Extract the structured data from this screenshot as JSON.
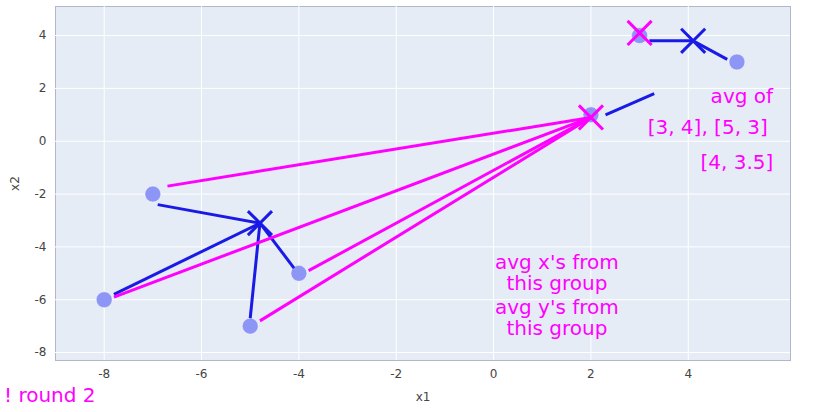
{
  "chart_data": {
    "type": "scatter",
    "x_label": "x1",
    "y_label": "x2",
    "x": [
      -7,
      -8,
      -5,
      -4,
      2,
      3,
      5
    ],
    "y": [
      -2,
      -6,
      -7,
      -5,
      1,
      4,
      3
    ],
    "color": "#8e96f5",
    "xlim": [
      -9,
      6.1
    ],
    "ylim": [
      -8.3,
      5.1
    ],
    "xticks": [
      -8,
      -6,
      -4,
      -2,
      0,
      2,
      4
    ],
    "yticks": [
      -8,
      -6,
      -4,
      -2,
      0,
      2,
      4
    ],
    "grid": true,
    "annotations": {
      "centroids": [
        {
          "x": -4.8,
          "y": -3.1,
          "color": "#1a1ae6"
        },
        {
          "x": 2,
          "y": 0.9,
          "color": "#ff00ff"
        },
        {
          "x": 3,
          "y": 4.1,
          "color": "#ff00ff"
        },
        {
          "x": 4.1,
          "y": 3.8,
          "color": "#1a1ae6"
        }
      ],
      "links": [
        {
          "x1": -6.9,
          "y1": -2.4,
          "x2": -4.8,
          "y2": -3.1,
          "color": "#1a1ae6"
        },
        {
          "x1": -7.8,
          "y1": -5.8,
          "x2": -4.8,
          "y2": -3.1,
          "color": "#1a1ae6"
        },
        {
          "x1": -5,
          "y1": -6.7,
          "x2": -4.8,
          "y2": -3.1,
          "color": "#1a1ae6"
        },
        {
          "x1": -4.1,
          "y1": -4.8,
          "x2": -4.8,
          "y2": -3.1,
          "color": "#1a1ae6"
        },
        {
          "x1": 3.2,
          "y1": 3.8,
          "x2": 4.1,
          "y2": 3.8,
          "color": "#1a1ae6"
        },
        {
          "x1": 4.8,
          "y1": 3.1,
          "x2": 4.1,
          "y2": 3.8,
          "color": "#1a1ae6"
        },
        {
          "x1": 2.3,
          "y1": 1,
          "x2": 3.3,
          "y2": 1.8,
          "color": "#1a1ae6"
        },
        {
          "x1": -6.7,
          "y1": -1.7,
          "x2": 2,
          "y2": 0.9,
          "color": "#ff00ff"
        },
        {
          "x1": -7.8,
          "y1": -5.9,
          "x2": 2,
          "y2": 0.9,
          "color": "#ff00ff"
        },
        {
          "x1": -4.8,
          "y1": -6.8,
          "x2": 2,
          "y2": 0.9,
          "color": "#ff00ff"
        },
        {
          "x1": -3.8,
          "y1": -4.9,
          "x2": 2,
          "y2": 0.9,
          "color": "#ff00ff"
        }
      ],
      "texts": [
        {
          "text": "avg of",
          "x": 5.1,
          "y": 1.7,
          "color": "#ff00ff"
        },
        {
          "text": "[3, 4], [5, 3]",
          "x": 4.4,
          "y": 0.5,
          "color": "#ff00ff"
        },
        {
          "text": "[4, 3.5]",
          "x": 5.0,
          "y": -0.8,
          "color": "#ff00ff"
        },
        {
          "text": "avg x's from",
          "x": 1.3,
          "y": -4.6,
          "color": "#ff00ff"
        },
        {
          "text": "this group",
          "x": 1.3,
          "y": -5.4,
          "color": "#ff00ff"
        },
        {
          "text": "avg y's from",
          "x": 1.3,
          "y": -6.3,
          "color": "#ff00ff"
        },
        {
          "text": "this group",
          "x": 1.3,
          "y": -7.1,
          "color": "#ff00ff"
        }
      ],
      "corner_note": {
        "text": "! round 2",
        "color": "#ff00ff"
      }
    }
  }
}
